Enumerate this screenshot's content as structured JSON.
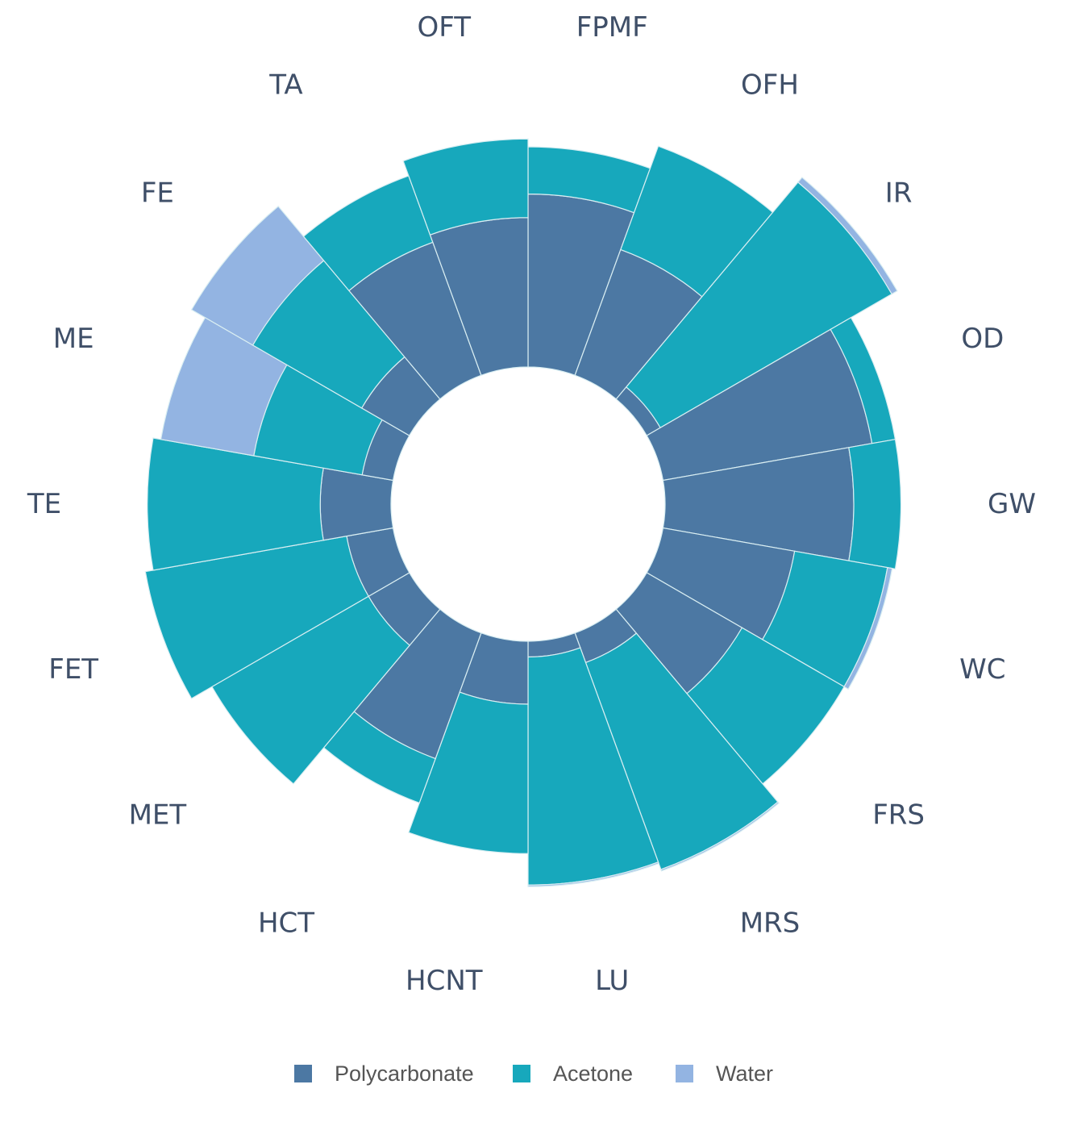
{
  "chart_data": {
    "type": "stacked-polar-bar",
    "categories": [
      "FPMF",
      "OFH",
      "IR",
      "OD",
      "GW",
      "WC",
      "FRS",
      "MRS",
      "LU",
      "HCNT",
      "HCT",
      "MET",
      "FET",
      "TE",
      "ME",
      "FE",
      "TA",
      "OFT"
    ],
    "series": [
      {
        "name": "Polycarbonate",
        "color": "#4c78a3",
        "values": [
          2.2,
          1.7,
          0.2,
          2.7,
          2.4,
          1.7,
          1.4,
          0.4,
          0.2,
          0.8,
          1.7,
          0.6,
          0.6,
          0.9,
          0.4,
          0.7,
          1.8,
          1.9
        ]
      },
      {
        "name": "Acetone",
        "color": "#17a8bc",
        "values": [
          0.6,
          1.4,
          3.4,
          0.3,
          0.6,
          1.2,
          1.5,
          2.8,
          2.9,
          1.9,
          0.6,
          2.3,
          2.6,
          2.2,
          1.4,
          1.6,
          0.9,
          1.0
        ]
      },
      {
        "name": "Water",
        "color": "#93b4e2",
        "values": [
          0,
          0,
          0.08,
          0,
          0,
          0.06,
          0,
          0.02,
          0.02,
          0,
          0,
          0,
          0,
          0,
          1.2,
          0.9,
          0,
          0
        ]
      }
    ],
    "legend_position": "bottom"
  }
}
